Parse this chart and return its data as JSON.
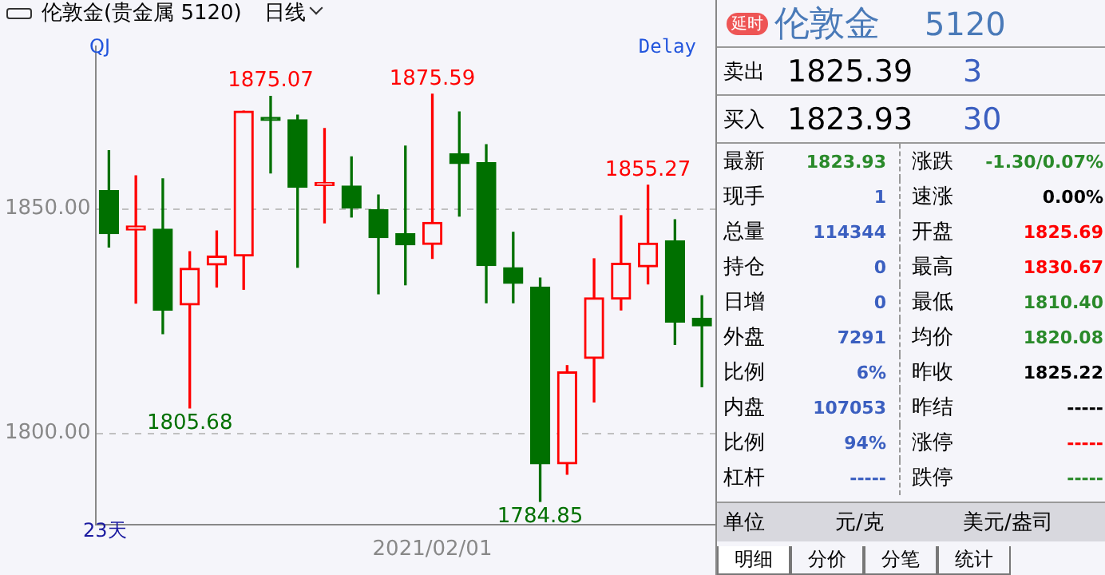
{
  "chart_data": [
    {
      "type": "candlestick",
      "title": "伦敦金(贵金属 5120)",
      "subtitle": "日线",
      "categories": [
        null,
        null,
        null,
        null,
        null,
        null,
        null,
        null,
        null,
        null,
        null,
        null,
        "2021/02/01",
        null,
        null,
        null,
        null,
        null,
        null,
        null,
        null,
        null,
        null
      ],
      "ohlc": [
        [
          1854.1,
          1863.0,
          1841.5,
          1844.5
        ],
        [
          1845.3,
          1857.4,
          1829.0,
          1846.2
        ],
        [
          1845.5,
          1856.7,
          1822.2,
          1827.4
        ],
        [
          1828.6,
          1840.5,
          1805.68,
          1836.8
        ],
        [
          1837.5,
          1845.1,
          1832.6,
          1839.5
        ],
        [
          1839.5,
          1871.8,
          1832.1,
          1871.8
        ],
        [
          1870.4,
          1875.07,
          1858.0,
          1869.7
        ],
        [
          1869.9,
          1870.9,
          1837.0,
          1854.8
        ],
        [
          1855.2,
          1867.9,
          1846.9,
          1855.7
        ],
        [
          1855.1,
          1861.6,
          1848.2,
          1850.2
        ],
        [
          1849.8,
          1853.1,
          1831.1,
          1843.6
        ],
        [
          1844.5,
          1864.0,
          1833.1,
          1842.0
        ],
        [
          1842.1,
          1875.59,
          1839.0,
          1847.0
        ],
        [
          1862.3,
          1871.6,
          1848.4,
          1860.1
        ],
        [
          1860.3,
          1864.3,
          1829.1,
          1837.4
        ],
        [
          1836.9,
          1844.8,
          1829.1,
          1833.4
        ],
        [
          1832.6,
          1834.6,
          1784.85,
          1793.2
        ],
        [
          1793.2,
          1815.1,
          1790.9,
          1813.7
        ],
        [
          1816.7,
          1838.9,
          1807.0,
          1830.2
        ],
        [
          1829.9,
          1848.5,
          1827.5,
          1837.9
        ],
        [
          1837.1,
          1855.27,
          1833.3,
          1842.4
        ],
        [
          1842.9,
          1847.6,
          1819.8,
          1824.8
        ],
        [
          1825.69,
          1830.67,
          1810.4,
          1823.93
        ]
      ],
      "colors": [
        "#007000",
        "#ff0000",
        "#007000",
        "#ff0000",
        "#ff0000",
        "#ff0000",
        "#007000",
        "#007000",
        "#ff0000",
        "#007000",
        "#007000",
        "#007000",
        "#ff0000",
        "#007000",
        "#007000",
        "#007000",
        "#007000",
        "#ff0000",
        "#ff0000",
        "#ff0000",
        "#ff0000",
        "#007000",
        "#007000"
      ],
      "ylim": [
        1779.7,
        1886.3
      ],
      "yticks": [
        {
          "value": 1850,
          "label": "1850.00"
        },
        {
          "value": 1800,
          "label": "1800.00"
        }
      ],
      "grid": "y",
      "annotations": [
        {
          "text": "1875.07",
          "y": 1875.07
        },
        {
          "text": "1875.59",
          "y": 1875.59
        },
        {
          "text": "1855.27",
          "y": 1855.27
        },
        {
          "text": "1805.68",
          "y": 1805.68
        },
        {
          "text": "1784.85",
          "y": 1784.85
        },
        "QJ",
        "Delay",
        "23天"
      ]
    },
    {
      "type": "other",
      "title": "伦敦金",
      "subtitle": "5120",
      "annotations": [
        "延时",
        "卖出",
        "1825.39",
        "3",
        "买入",
        "1823.93",
        "30",
        "最新",
        "1823.93",
        "涨跌",
        "-1.30/0.07%",
        "现手",
        "1",
        "速涨",
        "0.00%",
        "总量",
        "114344",
        "开盘",
        "1825.69",
        "持仓",
        "0",
        "最高",
        "1830.67",
        "日增",
        "0",
        "最低",
        "1810.40",
        "外盘",
        "7291",
        "均价",
        "1820.08",
        "比例",
        "6%",
        "昨收",
        "1825.22",
        "内盘",
        "107053",
        "昨结",
        "-----",
        "比例",
        "94%",
        "涨停",
        "-----",
        "杠杆",
        "-----",
        "跌停",
        "-----",
        "单位",
        "元/克",
        "美元/盎司",
        "明细",
        "分价",
        "分笔",
        "统计"
      ]
    }
  ]
}
